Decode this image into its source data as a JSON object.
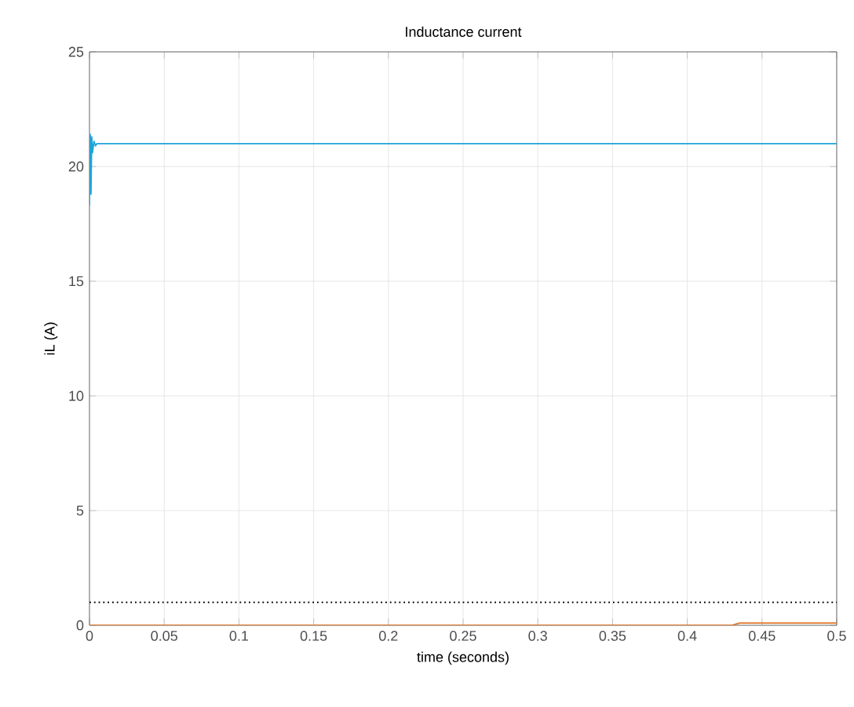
{
  "chart_data": {
    "type": "line",
    "title": "Inductance current",
    "xlabel": "time (seconds)",
    "ylabel": "iL (A)",
    "series": [
      {
        "color": "#1fa3d9",
        "x": [
          0,
          0.0005,
          0.001,
          0.0015,
          0.002,
          0.003,
          0.004,
          0.005,
          0.5
        ],
        "values": [
          18.3,
          21.4,
          18.8,
          21.3,
          20.6,
          21.1,
          20.9,
          21,
          21
        ]
      },
      {
        "color": "#e0782c",
        "x": [
          0,
          0.43,
          0.435,
          0.5
        ],
        "values": [
          0,
          0,
          0.1,
          0.1
        ]
      }
    ],
    "ref_lines": [
      {
        "axis": "y",
        "value": 1,
        "color": "#000000",
        "line_style": "dotted"
      }
    ],
    "xlim": [
      0,
      0.5
    ],
    "ylim": [
      0,
      25
    ],
    "xticks": [
      0,
      0.05,
      0.1,
      0.15,
      0.2,
      0.25,
      0.3,
      0.35,
      0.4,
      0.45,
      0.5
    ],
    "yticks": [
      0,
      5,
      10,
      15,
      20,
      25
    ],
    "grid": true,
    "marker": "none",
    "line_style": "solid"
  }
}
